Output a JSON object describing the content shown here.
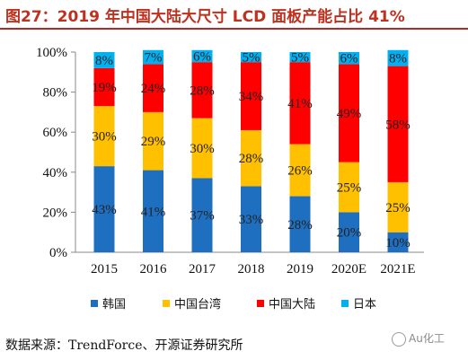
{
  "header": {
    "title": "图27：2019 年中国大陆大尺寸 LCD 面板产能占比 41%"
  },
  "footer": {
    "source": "数据来源：TrendForce、开源证券研究所",
    "watermark": "Au化工"
  },
  "chart_data": {
    "type": "bar",
    "stacked": true,
    "categories": [
      "2015",
      "2016",
      "2017",
      "2018",
      "2019",
      "2020E",
      "2021E"
    ],
    "series": [
      {
        "name": "韩国",
        "color": "#1f6fc0",
        "values": [
          43,
          41,
          37,
          33,
          28,
          20,
          10
        ]
      },
      {
        "name": "中国台湾",
        "color": "#ffc000",
        "values": [
          30,
          29,
          30,
          28,
          26,
          25,
          25
        ]
      },
      {
        "name": "中国大陆",
        "color": "#ff0000",
        "values": [
          19,
          24,
          28,
          34,
          41,
          49,
          58
        ]
      },
      {
        "name": "日本",
        "color": "#00b0f0",
        "values": [
          8,
          7,
          6,
          5,
          5,
          6,
          8
        ]
      }
    ],
    "y_ticks": [
      "0%",
      "20%",
      "40%",
      "60%",
      "80%",
      "100%"
    ],
    "ylim": [
      0,
      100
    ],
    "legend_position": "bottom",
    "grid": false
  }
}
